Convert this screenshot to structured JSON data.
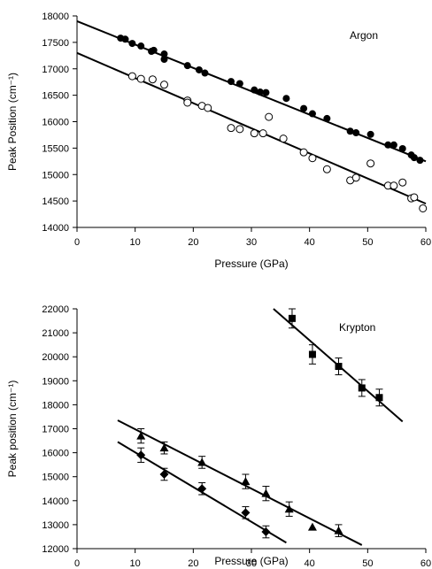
{
  "chart_data": [
    {
      "type": "scatter",
      "annotation": "Argon",
      "xlabel": "Pressure (GPa)",
      "ylabel": "Peak Position (cm⁻¹)",
      "xlim": [
        0,
        60
      ],
      "ylim": [
        14000,
        18000
      ],
      "xticks": [
        0,
        10,
        20,
        30,
        40,
        50,
        60
      ],
      "yticks": [
        14000,
        14500,
        15000,
        15500,
        16000,
        16500,
        17000,
        17500,
        18000
      ],
      "series": [
        {
          "marker": "filled-circle",
          "points": [
            [
              7.5,
              17580
            ],
            [
              8.3,
              17560
            ],
            [
              9.5,
              17480
            ],
            [
              11,
              17430
            ],
            [
              12.8,
              17330
            ],
            [
              13.2,
              17350
            ],
            [
              15,
              17180
            ],
            [
              15,
              17280
            ],
            [
              19,
              17060
            ],
            [
              21,
              16980
            ],
            [
              22,
              16920
            ],
            [
              26.5,
              16760
            ],
            [
              28,
              16720
            ],
            [
              30.5,
              16600
            ],
            [
              31.5,
              16560
            ],
            [
              32.5,
              16550
            ],
            [
              36,
              16440
            ],
            [
              39,
              16250
            ],
            [
              40.5,
              16150
            ],
            [
              43,
              16060
            ],
            [
              47,
              15820
            ],
            [
              48,
              15790
            ],
            [
              50.5,
              15760
            ],
            [
              53.5,
              15560
            ],
            [
              54.5,
              15560
            ],
            [
              56,
              15490
            ],
            [
              57.5,
              15370
            ],
            [
              58,
              15320
            ],
            [
              59,
              15270
            ]
          ],
          "fit": [
            [
              0,
              17900
            ],
            [
              60,
              15250
            ]
          ]
        },
        {
          "marker": "open-circle",
          "points": [
            [
              9.5,
              16860
            ],
            [
              11,
              16810
            ],
            [
              13,
              16800
            ],
            [
              15,
              16700
            ],
            [
              19,
              16400
            ],
            [
              19,
              16360
            ],
            [
              21.5,
              16300
            ],
            [
              22.5,
              16260
            ],
            [
              26.5,
              15880
            ],
            [
              28,
              15860
            ],
            [
              30.5,
              15780
            ],
            [
              32,
              15780
            ],
            [
              33,
              16090
            ],
            [
              35.5,
              15680
            ],
            [
              39,
              15420
            ],
            [
              40.5,
              15310
            ],
            [
              43,
              15100
            ],
            [
              47,
              14890
            ],
            [
              48,
              14940
            ],
            [
              50.5,
              15210
            ],
            [
              53.5,
              14790
            ],
            [
              54.5,
              14790
            ],
            [
              56,
              14850
            ],
            [
              57.5,
              14550
            ],
            [
              58,
              14570
            ],
            [
              59.5,
              14360
            ]
          ],
          "fit": [
            [
              0,
              17300
            ],
            [
              60,
              14450
            ]
          ]
        }
      ]
    },
    {
      "type": "scatter",
      "annotation": "Krypton",
      "xlabel": "Pressure (GPa)",
      "ylabel": "Peak position (cm⁻¹)",
      "xlim": [
        0,
        60
      ],
      "ylim": [
        12000,
        22000
      ],
      "xticks": [
        0,
        10,
        20,
        30,
        40,
        50,
        60
      ],
      "yticks": [
        12000,
        13000,
        14000,
        15000,
        16000,
        17000,
        18000,
        19000,
        20000,
        21000,
        22000
      ],
      "series": [
        {
          "marker": "filled-square",
          "points": [
            [
              37,
              21600
            ],
            [
              40.5,
              20100
            ],
            [
              45,
              19600
            ],
            [
              49,
              18700
            ],
            [
              52,
              18300
            ]
          ],
          "errors": [
            400,
            400,
            350,
            350,
            350
          ],
          "fit": [
            [
              33.8,
              22000
            ],
            [
              56,
              17300
            ]
          ]
        },
        {
          "marker": "filled-triangle",
          "points": [
            [
              11,
              16700
            ],
            [
              15,
              16200
            ],
            [
              21.5,
              15600
            ],
            [
              29,
              14800
            ],
            [
              32.5,
              14300
            ],
            [
              36.5,
              13650
            ],
            [
              40.5,
              12900
            ],
            [
              45,
              12750
            ]
          ],
          "errors": [
            300,
            250,
            250,
            300,
            300,
            300,
            0,
            250
          ],
          "fit": [
            [
              7,
              17350
            ],
            [
              49,
              12150
            ]
          ]
        },
        {
          "marker": "filled-diamond",
          "points": [
            [
              11,
              15900
            ],
            [
              15,
              15100
            ],
            [
              21.5,
              14500
            ],
            [
              29,
              13500
            ],
            [
              32.5,
              12700
            ]
          ],
          "errors": [
            300,
            250,
            250,
            250,
            250
          ],
          "fit": [
            [
              7,
              16450
            ],
            [
              36,
              12250
            ]
          ]
        }
      ]
    }
  ]
}
